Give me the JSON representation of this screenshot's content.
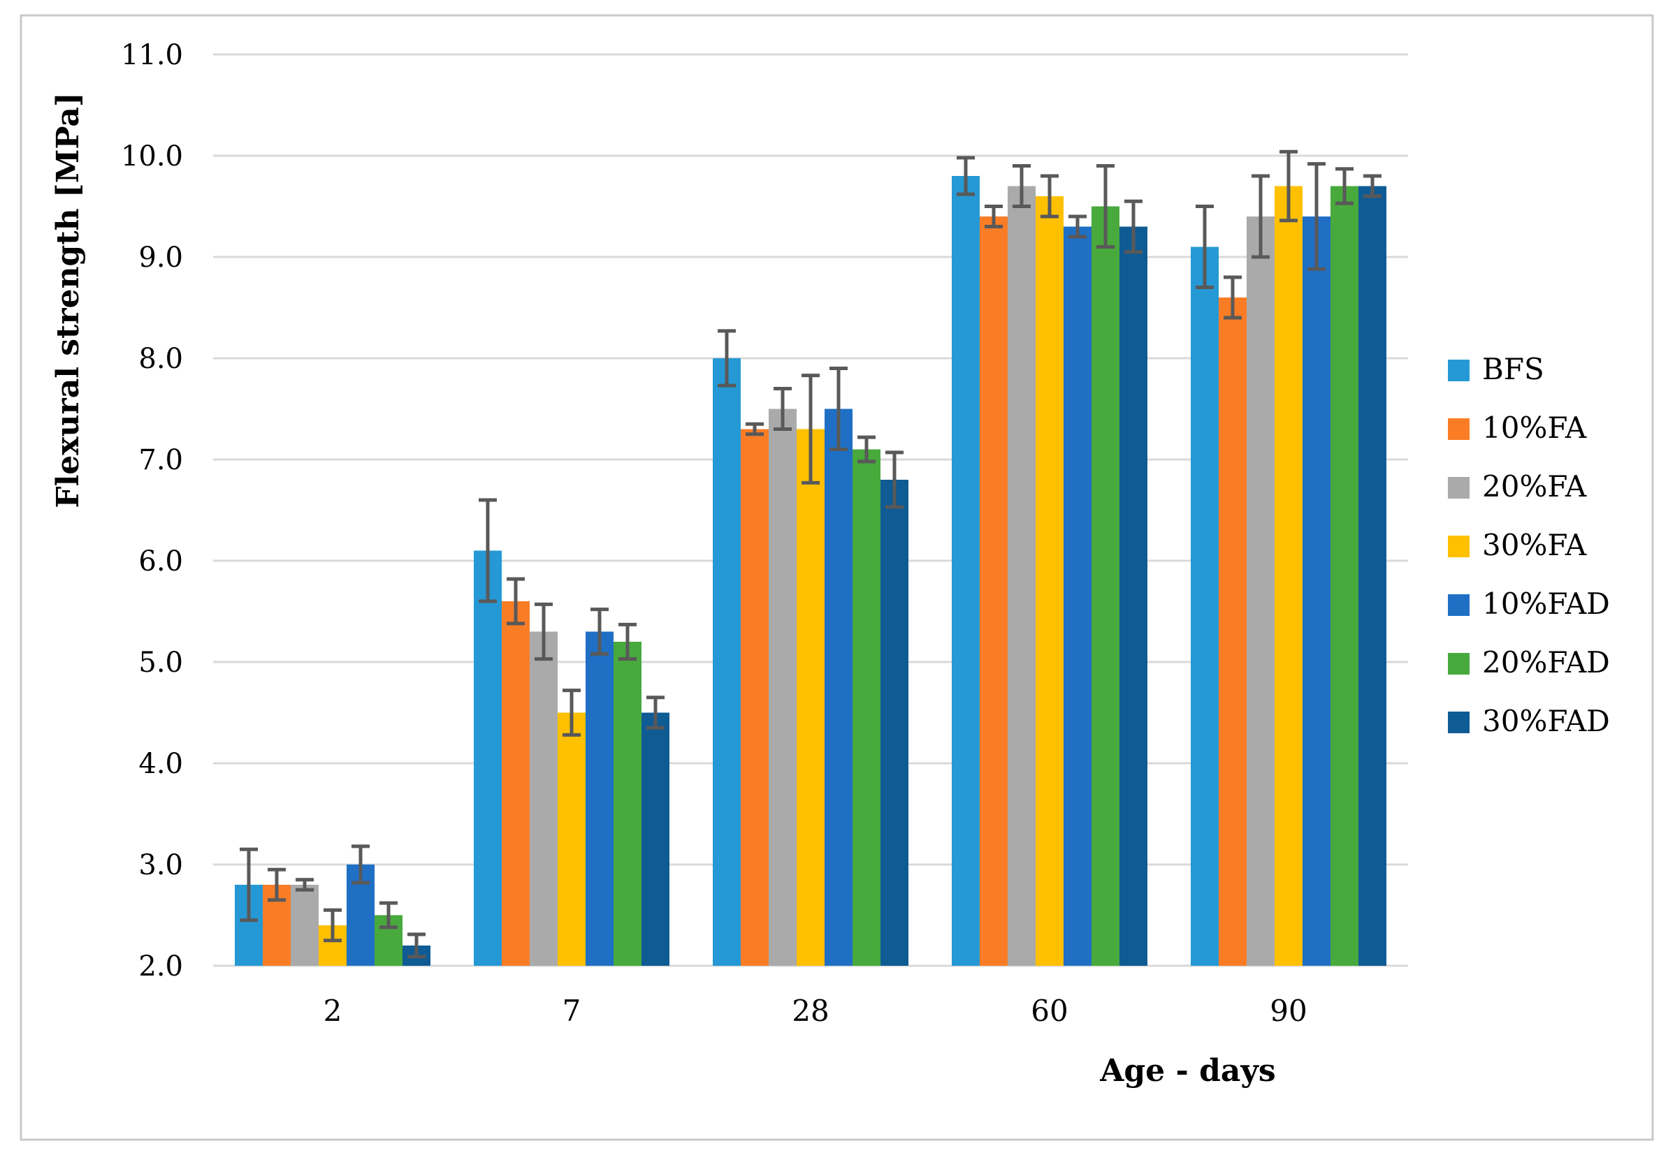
{
  "figure": {
    "background": "#FFFFFF",
    "border_color": "#C9C9C9"
  },
  "chart_data": {
    "type": "bar",
    "title": "",
    "xlabel": "Age - days",
    "ylabel": "Flexural strength [MPa]",
    "categories": [
      "2",
      "7",
      "28",
      "60",
      "90"
    ],
    "series": [
      {
        "name": "BFS",
        "color": "#2599D5",
        "values": [
          2.8,
          6.1,
          8.0,
          9.8,
          9.1
        ],
        "errors": [
          0.35,
          0.5,
          0.27,
          0.18,
          0.4
        ]
      },
      {
        "name": "10%FA",
        "color": "#FA7D26",
        "values": [
          2.8,
          5.6,
          7.3,
          9.4,
          8.6
        ],
        "errors": [
          0.15,
          0.22,
          0.05,
          0.1,
          0.2
        ]
      },
      {
        "name": "20%FA",
        "color": "#AAAAAA",
        "values": [
          2.8,
          5.3,
          7.5,
          9.7,
          9.4
        ],
        "errors": [
          0.05,
          0.27,
          0.2,
          0.2,
          0.4
        ]
      },
      {
        "name": "30%FA",
        "color": "#FFC000",
        "values": [
          2.4,
          4.5,
          7.3,
          9.6,
          9.7
        ],
        "errors": [
          0.15,
          0.22,
          0.53,
          0.2,
          0.34
        ]
      },
      {
        "name": "10%FAD",
        "color": "#1F6FC5",
        "values": [
          3.0,
          5.3,
          7.5,
          9.3,
          9.4
        ],
        "errors": [
          0.18,
          0.22,
          0.4,
          0.1,
          0.52
        ]
      },
      {
        "name": "20%FAD",
        "color": "#48A93C",
        "values": [
          2.5,
          5.2,
          7.1,
          9.5,
          9.7
        ],
        "errors": [
          0.12,
          0.17,
          0.12,
          0.4,
          0.17
        ]
      },
      {
        "name": "30%FAD",
        "color": "#0F5B94",
        "values": [
          2.2,
          4.5,
          6.8,
          9.3,
          9.7
        ],
        "errors": [
          0.11,
          0.15,
          0.27,
          0.25,
          0.1
        ]
      }
    ],
    "ylim": [
      2.0,
      11.0
    ],
    "ytick_step": 1.0,
    "ytick_labels": [
      "2.0",
      "3.0",
      "4.0",
      "5.0",
      "6.0",
      "7.0",
      "8.0",
      "9.0",
      "10.0",
      "11.0"
    ],
    "grid": true,
    "legend_position": "right",
    "gridline_color": "#D9D9D9",
    "error_bar_color": "#595959",
    "text_color": "#000000"
  }
}
